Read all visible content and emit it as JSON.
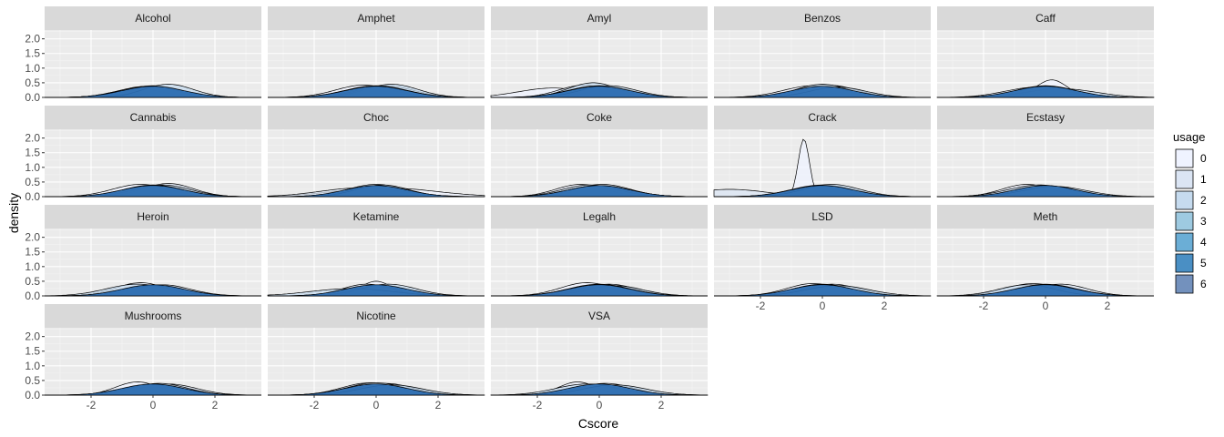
{
  "chart_data": {
    "type": "area",
    "subtype": "faceted-density",
    "xlabel": "Cscore",
    "ylabel": "density",
    "x_ticks": [
      -2,
      0,
      2
    ],
    "y_ticks": [
      "0.0",
      "0.5",
      "1.0",
      "1.5",
      "2.0"
    ],
    "xlim": [
      -3.5,
      3.5
    ],
    "ylim": [
      0,
      2.3
    ],
    "grid": true,
    "legend": {
      "title": "usage",
      "position": "right",
      "levels": [
        "0",
        "1",
        "2",
        "3",
        "4",
        "5",
        "6"
      ],
      "colors": [
        "#eff3ff",
        "#dbe5f4",
        "#c6dbef",
        "#9ecae1",
        "#6baed6",
        "#4a8fc4",
        "#7391bd"
      ]
    },
    "facets": [
      {
        "name": "Alcohol",
        "curves": [
          [
            -0.5,
            0.8,
            0.3
          ],
          [
            -0.2,
            0.9,
            0.38
          ],
          [
            0.0,
            0.95,
            0.4
          ],
          [
            0.5,
            0.8,
            0.45
          ]
        ]
      },
      {
        "name": "Amphet",
        "curves": [
          [
            -0.4,
            0.9,
            0.42
          ],
          [
            0.3,
            0.9,
            0.4
          ],
          [
            0.5,
            0.85,
            0.45
          ],
          [
            0.0,
            1.0,
            0.4
          ]
        ]
      },
      {
        "name": "Amyl",
        "curves": [
          [
            -1.5,
            1.1,
            0.32
          ],
          [
            -0.5,
            0.8,
            0.42
          ],
          [
            -0.2,
            0.8,
            0.5
          ],
          [
            0.0,
            1.0,
            0.4
          ],
          [
            0.3,
            0.9,
            0.4
          ]
        ]
      },
      {
        "name": "Benzos",
        "curves": [
          [
            -0.3,
            0.95,
            0.4
          ],
          [
            0.2,
            0.9,
            0.42
          ],
          [
            0.0,
            0.85,
            0.45
          ],
          [
            0.5,
            0.9,
            0.35
          ]
        ]
      },
      {
        "name": "Caff",
        "curves": [
          [
            0.2,
            0.5,
            0.6
          ],
          [
            -0.3,
            1.0,
            0.35
          ],
          [
            0.5,
            1.1,
            0.3
          ],
          [
            0.0,
            0.95,
            0.4
          ]
        ]
      },
      {
        "name": "Cannabis",
        "curves": [
          [
            -0.4,
            0.9,
            0.42
          ],
          [
            0.5,
            0.8,
            0.45
          ],
          [
            0.3,
            0.9,
            0.4
          ],
          [
            0.0,
            0.95,
            0.4
          ]
        ]
      },
      {
        "name": "Choc",
        "curves": [
          [
            0.3,
            1.6,
            0.3
          ],
          [
            -0.5,
            1.3,
            0.3
          ],
          [
            0.0,
            0.9,
            0.42
          ],
          [
            0.2,
            0.85,
            0.4
          ]
        ]
      },
      {
        "name": "Coke",
        "curves": [
          [
            -0.6,
            0.8,
            0.42
          ],
          [
            0.1,
            0.9,
            0.42
          ],
          [
            -0.3,
            0.9,
            0.4
          ],
          [
            0.0,
            1.0,
            0.38
          ]
        ]
      },
      {
        "name": "Crack",
        "curves": [
          [
            -0.6,
            0.18,
            1.97
          ],
          [
            -3.0,
            1.2,
            0.25
          ],
          [
            0.0,
            1.0,
            0.4
          ],
          [
            0.3,
            0.9,
            0.42
          ]
        ]
      },
      {
        "name": "Ecstasy",
        "curves": [
          [
            -0.6,
            0.8,
            0.42
          ],
          [
            0.0,
            0.9,
            0.38
          ],
          [
            -0.2,
            1.0,
            0.4
          ],
          [
            0.3,
            1.0,
            0.35
          ]
        ]
      },
      {
        "name": "Heroin",
        "curves": [
          [
            -0.4,
            0.8,
            0.45
          ],
          [
            0.3,
            0.9,
            0.38
          ],
          [
            -0.5,
            1.0,
            0.4
          ],
          [
            0.0,
            1.0,
            0.35
          ]
        ]
      },
      {
        "name": "Ketamine",
        "curves": [
          [
            0.0,
            0.5,
            0.5
          ],
          [
            -0.3,
            0.8,
            0.4
          ],
          [
            0.4,
            0.9,
            0.4
          ],
          [
            -0.8,
            1.3,
            0.25
          ]
        ]
      },
      {
        "name": "Legalh",
        "curves": [
          [
            -0.4,
            0.85,
            0.45
          ],
          [
            0.3,
            0.9,
            0.4
          ],
          [
            0.5,
            0.9,
            0.35
          ],
          [
            0.0,
            1.0,
            0.4
          ]
        ]
      },
      {
        "name": "LSD",
        "curves": [
          [
            -0.3,
            0.85,
            0.42
          ],
          [
            0.3,
            0.9,
            0.4
          ],
          [
            0.0,
            0.95,
            0.4
          ],
          [
            0.5,
            1.0,
            0.35
          ]
        ]
      },
      {
        "name": "Meth",
        "curves": [
          [
            -0.4,
            0.9,
            0.42
          ],
          [
            0.5,
            0.85,
            0.4
          ],
          [
            0.0,
            1.0,
            0.4
          ],
          [
            -0.6,
            0.9,
            0.38
          ]
        ]
      },
      {
        "name": "Mushrooms",
        "curves": [
          [
            -0.5,
            0.7,
            0.45
          ],
          [
            0.5,
            0.9,
            0.38
          ],
          [
            0.2,
            0.9,
            0.4
          ],
          [
            0.0,
            1.0,
            0.36
          ]
        ]
      },
      {
        "name": "Nicotine",
        "curves": [
          [
            -0.2,
            0.9,
            0.42
          ],
          [
            0.3,
            0.9,
            0.4
          ],
          [
            0.0,
            0.95,
            0.42
          ],
          [
            0.5,
            1.0,
            0.35
          ]
        ]
      },
      {
        "name": "VSA",
        "curves": [
          [
            -0.7,
            0.6,
            0.45
          ],
          [
            0.2,
            0.9,
            0.4
          ],
          [
            -0.4,
            1.0,
            0.38
          ],
          [
            0.5,
            1.0,
            0.35
          ]
        ]
      }
    ]
  }
}
